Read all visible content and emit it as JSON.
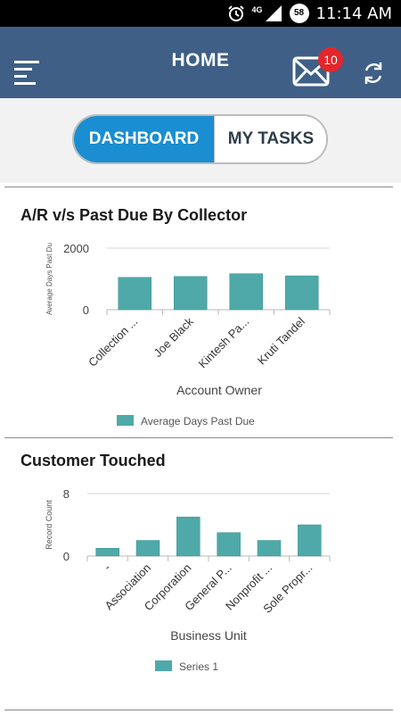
{
  "status_bar": {
    "time": "11:14 AM",
    "network_label": "4G",
    "battery_level": "58",
    "icons": [
      "alarm-icon",
      "signal-icon",
      "battery-icon"
    ]
  },
  "app_bar": {
    "title": "HOME",
    "menu_icon": "hamburger-menu-icon",
    "mail_icon": "mail-icon",
    "mail_badge": "10",
    "sync_icon": "sync-icon"
  },
  "tabs": [
    {
      "label": "DASHBOARD",
      "active": true
    },
    {
      "label": "MY TASKS",
      "active": false
    }
  ],
  "colors": {
    "app_bar": "#3f5f86",
    "active_tab": "#1a8ed1",
    "badge": "#e3262b",
    "bar": "#4fa9a9"
  },
  "chart_data": [
    {
      "type": "bar",
      "title": "A/R v/s Past Due By Collector",
      "categories": [
        "Collection ...",
        "Joe Black",
        "Kintesh Pa...",
        "Kruti Tandel"
      ],
      "series": [
        {
          "name": "Average Days Past Due",
          "values": [
            1050,
            1080,
            1170,
            1100
          ]
        }
      ],
      "xlabel": "Account Owner",
      "ylabel": "Average Days Past Du",
      "yticks": [
        "2000",
        "0"
      ],
      "ylim": [
        0,
        2000
      ],
      "legend": "bottom",
      "grid": true
    },
    {
      "type": "bar",
      "title": "Customer Touched",
      "categories": [
        "-",
        "Association",
        "Corporation",
        "General P...",
        "Nonprofit ...",
        "Sole Propr..."
      ],
      "series": [
        {
          "name": "Series 1",
          "values": [
            1,
            2,
            5,
            3,
            2,
            4
          ]
        }
      ],
      "xlabel": "Business Unit",
      "ylabel": "Record Count",
      "yticks": [
        "8",
        "0"
      ],
      "ylim": [
        0,
        8
      ],
      "legend": "bottom",
      "grid": true
    }
  ]
}
